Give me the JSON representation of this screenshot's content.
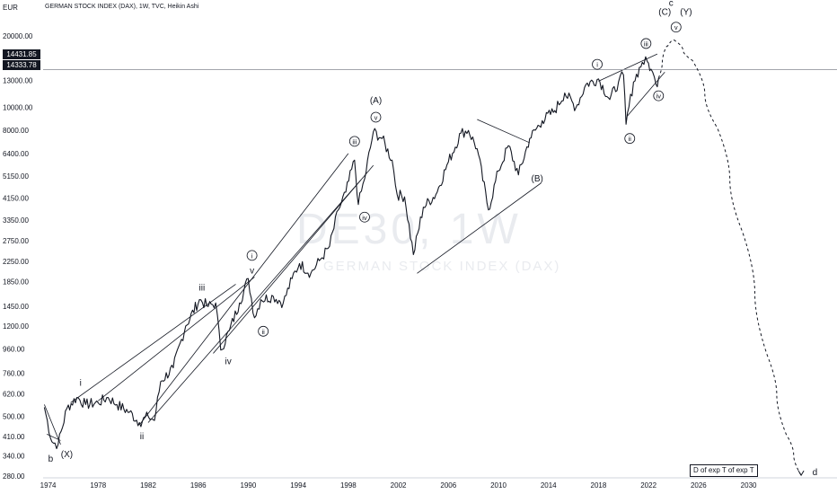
{
  "chart_title": "GERMAN STOCK INDEX (DAX), 1W, TVC, Heikin Ashi",
  "unit_label": "EUR",
  "price_badges": [
    "14431.85",
    "14333.78"
  ],
  "watermark": "DE30, 1W",
  "watermark_sub": "GERMAN STOCK INDEX (DAX)",
  "note_box": "D of exp T of exp T",
  "colors": {
    "price": "#131722",
    "lines": "#131722",
    "background": "#ffffff",
    "watermark": "#e9ebef"
  },
  "chart_data": {
    "type": "line",
    "scale": "log",
    "xlim": [
      1973.6,
      2035.2
    ],
    "ylim": [
      275,
      26000
    ],
    "x_ticks": [
      "1974",
      "1978",
      "1982",
      "1986",
      "1990",
      "1994",
      "1998",
      "2002",
      "2006",
      "2010",
      "2014",
      "2018",
      "2022",
      "2026",
      "2030"
    ],
    "y_ticks": [
      "20000.00",
      "13000.00",
      "10000.00",
      "8000.00",
      "6400.00",
      "5150.00",
      "4150.00",
      "3350.00",
      "2750.00",
      "2250.00",
      "1850.00",
      "1450.00",
      "1200.00",
      "960.00",
      "760.00",
      "620.00",
      "500.00",
      "410.00",
      "340.00",
      "280.00"
    ],
    "grid": false,
    "series": [
      {
        "x": [
          1973.7,
          1974.3,
          1974.8,
          1975.5,
          1976.3,
          1977.0,
          1978.0,
          1978.8,
          1979.5,
          1980.5,
          1981.3,
          1982.0,
          1982.5,
          1983.0,
          1984.0,
          1985.0,
          1986.1,
          1986.8,
          1987.4,
          1987.8,
          1988.5,
          1989.3,
          1990.0,
          1990.5,
          1991.0,
          1992.0,
          1992.8,
          1993.5,
          1994.1,
          1995.0,
          1995.8,
          1996.5,
          1997.2,
          1997.8,
          1998.5,
          1998.8,
          1999.3,
          2000.0,
          2000.7,
          2001.5,
          2001.9,
          2002.5,
          2003.2,
          2004.0,
          2005.0,
          2006.0,
          2007.0,
          2007.6,
          2008.3,
          2009.2,
          2010.0,
          2010.8,
          2011.6,
          2012.5,
          2013.5,
          2014.5,
          2015.3,
          2016.2,
          2017.0,
          2018.0,
          2018.9,
          2019.6,
          2020.0,
          2020.2,
          2020.8,
          2021.5,
          2021.9,
          2022.2,
          2022.6,
          2022.8
        ],
        "y": [
          545,
          390,
          380,
          540,
          600,
          560,
          570,
          600,
          560,
          520,
          470,
          500,
          480,
          700,
          800,
          1200,
          1550,
          1450,
          1500,
          950,
          1150,
          1500,
          1900,
          1300,
          1550,
          1600,
          1500,
          1900,
          2200,
          2000,
          2300,
          2600,
          3700,
          4400,
          6000,
          3900,
          5000,
          7900,
          7400,
          6000,
          4300,
          4200,
          2400,
          3800,
          4300,
          5900,
          7800,
          8000,
          6700,
          3700,
          5400,
          6900,
          5200,
          7400,
          8800,
          9700,
          11500,
          10000,
          12500,
          13200,
          10800,
          12800,
          13700,
          8500,
          12800,
          15500,
          15600,
          14500,
          12500,
          13300
        ]
      }
    ],
    "projection": {
      "x": [
        2022.8,
        2023.4,
        2024.0,
        2025.5,
        2027.5,
        2029.5,
        2031.5,
        2033.0,
        2034.2
      ],
      "y": [
        13300,
        18000,
        19300,
        15800,
        8200,
        3000,
        900,
        420,
        282
      ]
    },
    "trendlines": [
      {
        "x": [
          1973.7,
          1975.0
        ],
        "y": [
          560,
          380
        ]
      },
      {
        "x": [
          1973.9,
          1975.0
        ],
        "y": [
          420,
          395
        ]
      },
      {
        "x": [
          1975.8,
          1989.0
        ],
        "y": [
          570,
          1800
        ]
      },
      {
        "x": [
          1978.0,
          1990.5
        ],
        "y": [
          580,
          1930
        ]
      },
      {
        "x": [
          1981.3,
          1998.0
        ],
        "y": [
          460,
          6400
        ]
      },
      {
        "x": [
          1982.0,
          1999.0
        ],
        "y": [
          470,
          4950
        ]
      },
      {
        "x": [
          1987.2,
          2000.0
        ],
        "y": [
          920,
          5700
        ]
      },
      {
        "x": [
          2003.5,
          2013.4
        ],
        "y": [
          2000,
          4800
        ]
      },
      {
        "x": [
          2008.3,
          2012.5
        ],
        "y": [
          8900,
          7100
        ]
      },
      {
        "x": [
          2018.0,
          2022.7
        ],
        "y": [
          12900,
          16800
        ]
      },
      {
        "x": [
          2020.3,
          2023.3
        ],
        "y": [
          9200,
          14100
        ]
      }
    ],
    "horizontal_lines": [
      14430
    ],
    "annotations": [
      {
        "text": "b",
        "x": 1974.2,
        "y": 330
      },
      {
        "text": "(X)",
        "x": 1975.5,
        "y": 345
      },
      {
        "text": "i",
        "x": 1976.6,
        "y": 690
      },
      {
        "text": "ii",
        "x": 1981.5,
        "y": 410
      },
      {
        "text": "iii",
        "x": 1986.3,
        "y": 1740
      },
      {
        "text": "iv",
        "x": 1988.4,
        "y": 850
      },
      {
        "text": "v",
        "x": 1990.3,
        "y": 2050
      },
      {
        "text": "i",
        "x": 1990.3,
        "y": 2380,
        "circled": true
      },
      {
        "text": "ii",
        "x": 1991.2,
        "y": 1140,
        "circled": true
      },
      {
        "text": "iii",
        "x": 1998.5,
        "y": 7200,
        "circled": true
      },
      {
        "text": "iv",
        "x": 1999.3,
        "y": 3450,
        "circled": true
      },
      {
        "text": "(A)",
        "x": 2000.2,
        "y": 10700
      },
      {
        "text": "v",
        "x": 2000.2,
        "y": 9100,
        "circled": true
      },
      {
        "text": "(B)",
        "x": 2013.1,
        "y": 5000
      },
      {
        "text": "i",
        "x": 2017.9,
        "y": 15200,
        "circled": true
      },
      {
        "text": "ii",
        "x": 2020.5,
        "y": 7400,
        "circled": true
      },
      {
        "text": "iii",
        "x": 2021.8,
        "y": 18600,
        "circled": true
      },
      {
        "text": "iv",
        "x": 2022.8,
        "y": 11200,
        "circled": true
      },
      {
        "text": "c",
        "x": 2023.8,
        "y": 27500
      },
      {
        "text": "(C)",
        "x": 2023.3,
        "y": 25200
      },
      {
        "text": "(Y)",
        "x": 2025.0,
        "y": 25200
      },
      {
        "text": "v",
        "x": 2024.2,
        "y": 21800,
        "circled": true
      },
      {
        "text": "d",
        "x": 2035.3,
        "y": 290
      }
    ]
  }
}
